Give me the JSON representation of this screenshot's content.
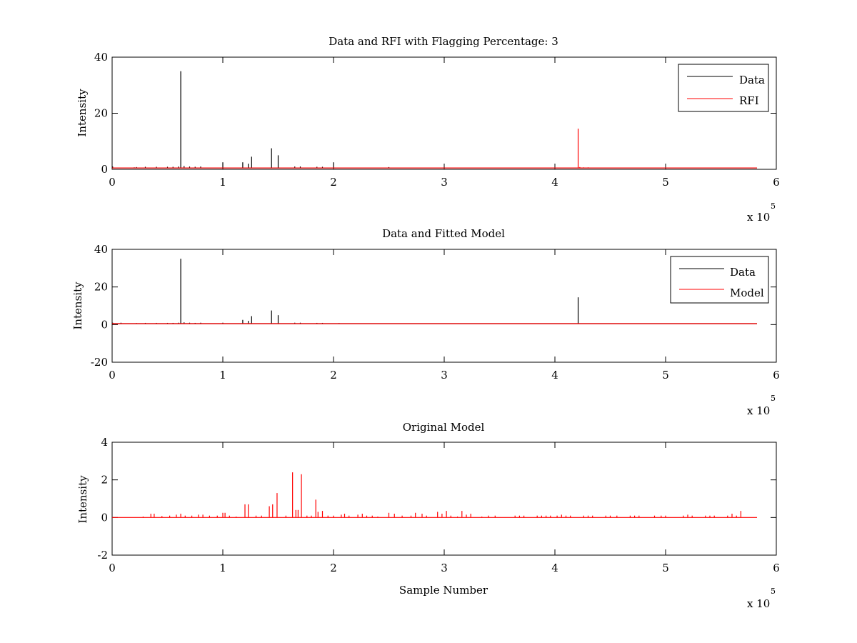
{
  "window": {
    "background": "#ffffff"
  },
  "colors": {
    "data": "#000000",
    "red": "#ff0000",
    "axes": "#000000"
  },
  "chart_data": [
    {
      "type": "line",
      "title": "Data and RFI with Flagging Percentage: 3",
      "xlabel": "",
      "ylabel": "Intensity",
      "xlim": [
        0,
        600000
      ],
      "ylim": [
        0,
        40
      ],
      "xticks": [
        0,
        1,
        2,
        3,
        4,
        5,
        6
      ],
      "yticks": [
        0,
        20,
        40
      ],
      "x_multiplier": "x 10",
      "x_multiplier_exp": "5",
      "legend": {
        "position": "top-right",
        "entries": [
          "Data",
          "RFI"
        ]
      },
      "baseline": 0.5,
      "series": [
        {
          "name": "Data",
          "color": "#000000",
          "spikes": [
            [
              500,
              1.0
            ],
            [
              20000,
              0.7
            ],
            [
              22000,
              0.8
            ],
            [
              30000,
              0.9
            ],
            [
              40000,
              0.9
            ],
            [
              50000,
              0.9
            ],
            [
              55000,
              0.9
            ],
            [
              60000,
              1.0
            ],
            [
              62000,
              35.0
            ],
            [
              65000,
              1.2
            ],
            [
              70000,
              1.0
            ],
            [
              75000,
              0.9
            ],
            [
              80000,
              1.0
            ],
            [
              100000,
              2.5
            ],
            [
              118000,
              2.5
            ],
            [
              123000,
              2.0
            ],
            [
              126000,
              4.5
            ],
            [
              144000,
              7.5
            ],
            [
              150000,
              5.0
            ],
            [
              165000,
              1.0
            ],
            [
              170000,
              1.0
            ],
            [
              185000,
              0.9
            ],
            [
              190000,
              0.9
            ],
            [
              200000,
              2.5
            ],
            [
              250000,
              0.8
            ],
            [
              300000,
              0.7
            ],
            [
              575000,
              0.6
            ]
          ]
        },
        {
          "name": "RFI",
          "color": "#ff0000",
          "spikes": [
            [
              421000,
              14.5
            ],
            [
              422500,
              0.8
            ],
            [
              426000,
              0.7
            ],
            [
              430000,
              0.7
            ]
          ]
        }
      ]
    },
    {
      "type": "line",
      "title": "Data and Fitted Model",
      "xlabel": "",
      "ylabel": "Intensity",
      "xlim": [
        0,
        600000
      ],
      "ylim": [
        -20,
        40
      ],
      "xticks": [
        0,
        1,
        2,
        3,
        4,
        5,
        6
      ],
      "yticks": [
        -20,
        0,
        20,
        40
      ],
      "x_multiplier": "x 10",
      "x_multiplier_exp": "5",
      "legend": {
        "position": "top-right",
        "entries": [
          "Data",
          "Model"
        ]
      },
      "baseline": 0.5,
      "series": [
        {
          "name": "Data",
          "color": "#000000",
          "spikes": [
            [
              500,
              1.0
            ],
            [
              8000,
              1.0
            ],
            [
              20000,
              0.7
            ],
            [
              22000,
              0.8
            ],
            [
              30000,
              0.9
            ],
            [
              40000,
              0.9
            ],
            [
              50000,
              0.9
            ],
            [
              55000,
              0.9
            ],
            [
              60000,
              1.0
            ],
            [
              62000,
              35.0
            ],
            [
              65000,
              1.2
            ],
            [
              70000,
              1.0
            ],
            [
              75000,
              0.9
            ],
            [
              80000,
              1.0
            ],
            [
              100000,
              1.0
            ],
            [
              118000,
              2.5
            ],
            [
              123000,
              2.0
            ],
            [
              126000,
              4.5
            ],
            [
              144000,
              7.5
            ],
            [
              150000,
              5.0
            ],
            [
              165000,
              1.0
            ],
            [
              170000,
              1.0
            ],
            [
              185000,
              0.9
            ],
            [
              190000,
              0.9
            ],
            [
              205000,
              0.8
            ],
            [
              250000,
              0.7
            ],
            [
              300000,
              0.6
            ],
            [
              421000,
              14.5
            ]
          ]
        },
        {
          "name": "Model",
          "color": "#ff0000",
          "spikes": []
        }
      ]
    },
    {
      "type": "line",
      "title": "Original Model",
      "xlabel": "Sample Number",
      "ylabel": "Intensity",
      "xlim": [
        0,
        600000
      ],
      "ylim": [
        -2,
        4
      ],
      "xticks": [
        0,
        1,
        2,
        3,
        4,
        5,
        6
      ],
      "yticks": [
        -2,
        0,
        2,
        4
      ],
      "x_multiplier": "x 10",
      "x_multiplier_exp": "5",
      "legend": null,
      "baseline": 0,
      "series": [
        {
          "color": "#ff0000",
          "spikes": [
            [
              28000,
              0.05
            ],
            [
              35000,
              0.2
            ],
            [
              38000,
              0.2
            ],
            [
              45000,
              0.08
            ],
            [
              52000,
              0.1
            ],
            [
              58000,
              0.15
            ],
            [
              62000,
              0.2
            ],
            [
              66000,
              0.1
            ],
            [
              72000,
              0.1
            ],
            [
              78000,
              0.15
            ],
            [
              82000,
              0.15
            ],
            [
              88000,
              0.1
            ],
            [
              95000,
              0.1
            ],
            [
              100000,
              0.25
            ],
            [
              102000,
              0.25
            ],
            [
              106000,
              0.1
            ],
            [
              112000,
              0.05
            ],
            [
              120000,
              0.7
            ],
            [
              123000,
              0.7
            ],
            [
              130000,
              0.1
            ],
            [
              135000,
              0.1
            ],
            [
              142000,
              0.6
            ],
            [
              145000,
              0.7
            ],
            [
              149000,
              1.3
            ],
            [
              157000,
              0.1
            ],
            [
              163000,
              2.4
            ],
            [
              166000,
              0.4
            ],
            [
              168000,
              0.4
            ],
            [
              171000,
              2.3
            ],
            [
              176000,
              0.1
            ],
            [
              180000,
              0.1
            ],
            [
              184000,
              0.95
            ],
            [
              186000,
              0.3
            ],
            [
              190000,
              0.35
            ],
            [
              195000,
              0.1
            ],
            [
              200000,
              0.1
            ],
            [
              207000,
              0.15
            ],
            [
              210000,
              0.2
            ],
            [
              214000,
              0.1
            ],
            [
              222000,
              0.15
            ],
            [
              226000,
              0.2
            ],
            [
              230000,
              0.1
            ],
            [
              235000,
              0.1
            ],
            [
              240000,
              0.05
            ],
            [
              250000,
              0.25
            ],
            [
              255000,
              0.2
            ],
            [
              262000,
              0.1
            ],
            [
              270000,
              0.1
            ],
            [
              274000,
              0.25
            ],
            [
              280000,
              0.2
            ],
            [
              284000,
              0.1
            ],
            [
              294000,
              0.3
            ],
            [
              298000,
              0.2
            ],
            [
              302000,
              0.35
            ],
            [
              306000,
              0.1
            ],
            [
              312000,
              0.05
            ],
            [
              316000,
              0.35
            ],
            [
              320000,
              0.15
            ],
            [
              324000,
              0.2
            ],
            [
              334000,
              0.05
            ],
            [
              340000,
              0.1
            ],
            [
              346000,
              0.1
            ],
            [
              364000,
              0.1
            ],
            [
              368000,
              0.1
            ],
            [
              372000,
              0.1
            ],
            [
              384000,
              0.1
            ],
            [
              388000,
              0.1
            ],
            [
              392000,
              0.1
            ],
            [
              396000,
              0.1
            ],
            [
              402000,
              0.1
            ],
            [
              406000,
              0.15
            ],
            [
              410000,
              0.1
            ],
            [
              414000,
              0.1
            ],
            [
              426000,
              0.1
            ],
            [
              430000,
              0.1
            ],
            [
              434000,
              0.1
            ],
            [
              446000,
              0.1
            ],
            [
              450000,
              0.1
            ],
            [
              456000,
              0.1
            ],
            [
              468000,
              0.1
            ],
            [
              472000,
              0.1
            ],
            [
              476000,
              0.1
            ],
            [
              490000,
              0.1
            ],
            [
              496000,
              0.1
            ],
            [
              500000,
              0.1
            ],
            [
              516000,
              0.1
            ],
            [
              520000,
              0.15
            ],
            [
              524000,
              0.1
            ],
            [
              536000,
              0.1
            ],
            [
              540000,
              0.1
            ],
            [
              544000,
              0.1
            ],
            [
              556000,
              0.1
            ],
            [
              560000,
              0.2
            ],
            [
              564000,
              0.1
            ],
            [
              568000,
              0.35
            ]
          ]
        }
      ]
    }
  ]
}
